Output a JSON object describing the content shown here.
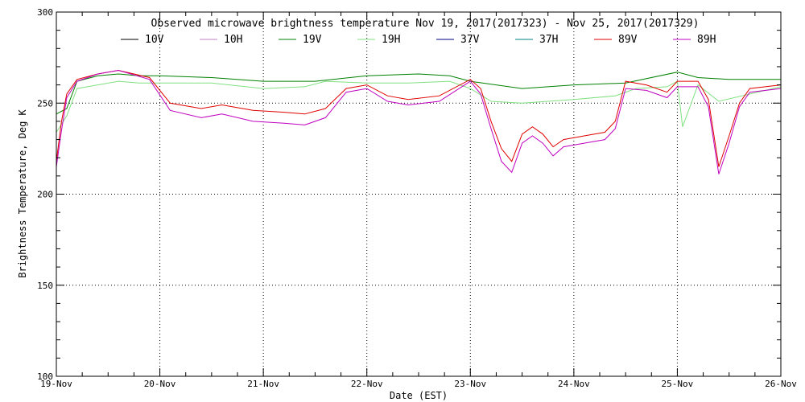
{
  "chart_data": {
    "type": "line",
    "title": "Observed microwave brightness temperature Nov 19, 2017(2017323) - Nov 25, 2017(2017329)",
    "xlabel": "Date (EST)",
    "ylabel": "Brightness Temperature, Deg K",
    "x_ticks": [
      "19-Nov",
      "20-Nov",
      "21-Nov",
      "22-Nov",
      "23-Nov",
      "24-Nov",
      "25-Nov",
      "26-Nov"
    ],
    "xlim": [
      "2017-11-19",
      "2017-11-26"
    ],
    "ylim": [
      100,
      300
    ],
    "y_ticks": [
      100,
      150,
      200,
      250,
      300
    ],
    "grid": true,
    "legend_position": "top",
    "series": [
      {
        "name": "10V",
        "color": "#000000",
        "x": [],
        "values": []
      },
      {
        "name": "10H",
        "color": "#c080c0",
        "x": [],
        "values": []
      },
      {
        "name": "19V",
        "color": "#008000",
        "x": [
          "2017-11-19T00:00",
          "2017-11-19T02:24",
          "2017-11-19T04:48",
          "2017-11-19T09:36",
          "2017-11-19T14:24",
          "2017-11-19T19:12",
          "2017-11-20T00:00",
          "2017-11-20T12:00",
          "2017-11-21T00:00",
          "2017-11-21T12:00",
          "2017-11-22T00:00",
          "2017-11-22T12:00",
          "2017-11-22T19:12",
          "2017-11-23T00:00",
          "2017-11-23T12:00",
          "2017-11-24T00:00",
          "2017-11-24T12:00",
          "2017-11-25T00:00",
          "2017-11-25T04:48",
          "2017-11-25T12:00",
          "2017-11-26T00:00"
        ],
        "values": [
          244,
          247,
          262,
          265,
          266,
          265,
          265,
          264,
          262,
          262,
          265,
          266,
          265,
          262,
          258,
          260,
          261,
          267,
          264,
          263,
          263
        ]
      },
      {
        "name": "19H",
        "color": "#80e080",
        "x": [
          "2017-11-19T00:00",
          "2017-11-19T02:24",
          "2017-11-19T04:48",
          "2017-11-19T09:36",
          "2017-11-19T14:24",
          "2017-11-19T19:12",
          "2017-11-20T00:00",
          "2017-11-20T12:00",
          "2017-11-21T00:00",
          "2017-11-21T09:36",
          "2017-11-21T14:24",
          "2017-11-22T00:00",
          "2017-11-22T09:36",
          "2017-11-22T19:12",
          "2017-11-23T00:00",
          "2017-11-23T04:48",
          "2017-11-23T12:00",
          "2017-11-24T00:00",
          "2017-11-24T09:36",
          "2017-11-24T14:24",
          "2017-11-24T21:36",
          "2017-11-25T00:00",
          "2017-11-25T01:12",
          "2017-11-25T04:48",
          "2017-11-25T09:36",
          "2017-11-26T00:00"
        ],
        "values": [
          234,
          243,
          258,
          260,
          262,
          261,
          261,
          261,
          258,
          259,
          262,
          261,
          261,
          262,
          258,
          251,
          250,
          252,
          254,
          258,
          259,
          262,
          237,
          260,
          251,
          259
        ]
      },
      {
        "name": "37V",
        "color": "#000080",
        "x": [],
        "values": []
      },
      {
        "name": "37H",
        "color": "#008080",
        "x": [],
        "values": []
      },
      {
        "name": "89V",
        "color": "#e00000",
        "x": [
          "2017-11-19T00:00",
          "2017-11-19T01:12",
          "2017-11-19T02:24",
          "2017-11-19T04:48",
          "2017-11-19T09:36",
          "2017-11-19T14:24",
          "2017-11-19T21:36",
          "2017-11-20T02:24",
          "2017-11-20T09:36",
          "2017-11-20T14:24",
          "2017-11-20T21:36",
          "2017-11-21T04:48",
          "2017-11-21T09:36",
          "2017-11-21T14:24",
          "2017-11-21T19:12",
          "2017-11-22T00:00",
          "2017-11-22T04:48",
          "2017-11-22T09:36",
          "2017-11-22T16:48",
          "2017-11-23T00:00",
          "2017-11-23T02:24",
          "2017-11-23T04:48",
          "2017-11-23T07:12",
          "2017-11-23T09:36",
          "2017-11-23T12:00",
          "2017-11-23T14:24",
          "2017-11-23T16:48",
          "2017-11-23T19:12",
          "2017-11-23T21:36",
          "2017-11-24T02:24",
          "2017-11-24T07:12",
          "2017-11-24T09:36",
          "2017-11-24T12:00",
          "2017-11-24T16:48",
          "2017-11-24T21:36",
          "2017-11-25T00:00",
          "2017-11-25T04:48",
          "2017-11-25T07:12",
          "2017-11-25T09:36",
          "2017-11-25T12:00",
          "2017-11-25T14:24",
          "2017-11-25T16:48",
          "2017-11-26T00:00"
        ],
        "values": [
          218,
          240,
          255,
          263,
          266,
          268,
          264,
          250,
          247,
          249,
          246,
          245,
          244,
          247,
          258,
          260,
          254,
          252,
          254,
          263,
          258,
          240,
          225,
          218,
          233,
          237,
          233,
          226,
          230,
          232,
          234,
          240,
          262,
          260,
          256,
          262,
          262,
          252,
          215,
          232,
          250,
          258,
          260
        ]
      },
      {
        "name": "89H",
        "color": "#c000c0",
        "x": [
          "2017-11-19T00:00",
          "2017-11-19T01:12",
          "2017-11-19T02:24",
          "2017-11-19T04:48",
          "2017-11-19T09:36",
          "2017-11-19T14:24",
          "2017-11-19T21:36",
          "2017-11-20T02:24",
          "2017-11-20T09:36",
          "2017-11-20T14:24",
          "2017-11-20T21:36",
          "2017-11-21T04:48",
          "2017-11-21T09:36",
          "2017-11-21T14:24",
          "2017-11-21T19:12",
          "2017-11-22T00:00",
          "2017-11-22T04:48",
          "2017-11-22T09:36",
          "2017-11-22T16:48",
          "2017-11-23T00:00",
          "2017-11-23T02:24",
          "2017-11-23T04:48",
          "2017-11-23T07:12",
          "2017-11-23T09:36",
          "2017-11-23T12:00",
          "2017-11-23T14:24",
          "2017-11-23T16:48",
          "2017-11-23T19:12",
          "2017-11-23T21:36",
          "2017-11-24T02:24",
          "2017-11-24T07:12",
          "2017-11-24T09:36",
          "2017-11-24T12:00",
          "2017-11-24T16:48",
          "2017-11-24T21:36",
          "2017-11-25T00:00",
          "2017-11-25T04:48",
          "2017-11-25T07:12",
          "2017-11-25T09:36",
          "2017-11-25T12:00",
          "2017-11-25T14:24",
          "2017-11-25T16:48",
          "2017-11-26T00:00"
        ],
        "values": [
          215,
          235,
          253,
          262,
          266,
          268,
          263,
          246,
          242,
          244,
          240,
          239,
          238,
          242,
          256,
          258,
          251,
          249,
          251,
          262,
          255,
          236,
          218,
          212,
          228,
          232,
          228,
          221,
          226,
          228,
          230,
          236,
          258,
          257,
          253,
          259,
          259,
          248,
          211,
          228,
          248,
          256,
          258
        ]
      }
    ]
  }
}
